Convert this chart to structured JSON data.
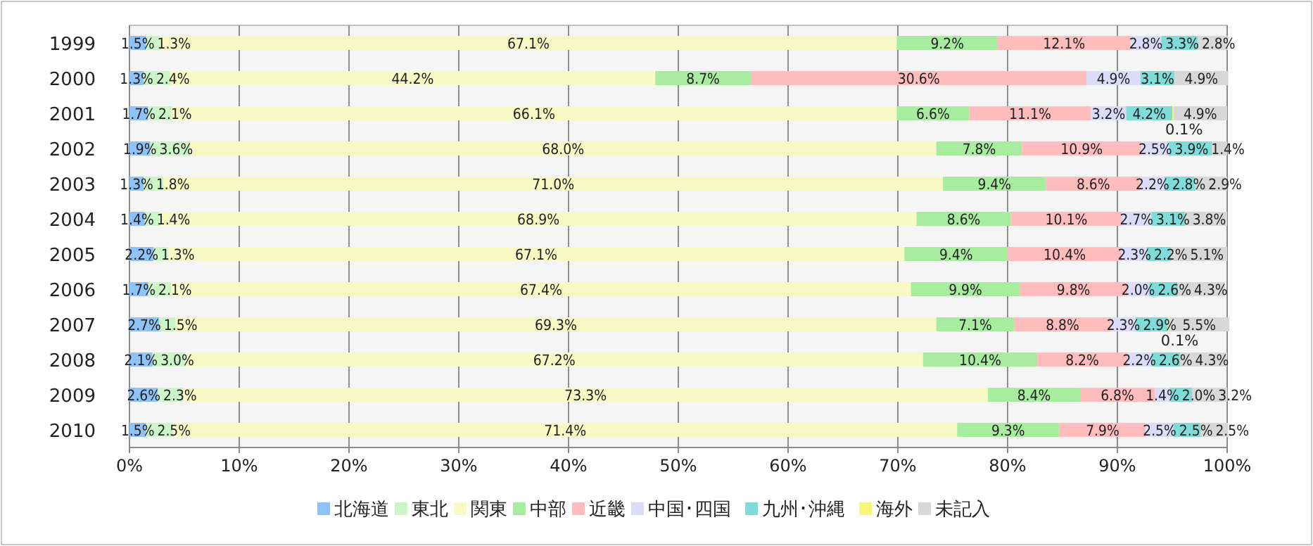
{
  "chart_data": {
    "type": "bar",
    "orientation": "horizontal",
    "stacked": true,
    "categories": [
      "1999",
      "2000",
      "2001",
      "2002",
      "2003",
      "2004",
      "2005",
      "2006",
      "2007",
      "2008",
      "2009",
      "2010"
    ],
    "xlim": [
      0,
      100
    ],
    "xticks": [
      {
        "value": 0,
        "label": "0%"
      },
      {
        "value": 10,
        "label": "10%"
      },
      {
        "value": 20,
        "label": "20%"
      },
      {
        "value": 30,
        "label": "30%"
      },
      {
        "value": 40,
        "label": "40%"
      },
      {
        "value": 50,
        "label": "50%"
      },
      {
        "value": 60,
        "label": "60%"
      },
      {
        "value": 70,
        "label": "70%"
      },
      {
        "value": 80,
        "label": "80%"
      },
      {
        "value": 90,
        "label": "90%"
      },
      {
        "value": 100,
        "label": "100%"
      }
    ],
    "grid": "x",
    "legend": "bottom",
    "series": [
      {
        "name": "北海道",
        "color": "#8fc3f7",
        "values": [
          1.5,
          1.3,
          1.7,
          1.9,
          1.3,
          1.4,
          2.2,
          1.7,
          2.7,
          2.1,
          2.6,
          1.5
        ],
        "value_labels": [
          "1.5%",
          "1.3%",
          "1.7%",
          "1.9%",
          "1.3%",
          "1.4%",
          "2.2%",
          "1.7%",
          "2.7%",
          "2.1%",
          "2.6%",
          "1.5%"
        ]
      },
      {
        "name": "東北",
        "color": "#ccf5c8",
        "values": [
          1.3,
          2.4,
          2.1,
          3.6,
          1.8,
          1.4,
          1.3,
          2.1,
          1.5,
          3.0,
          2.3,
          2.5
        ],
        "value_labels": [
          "1.3%",
          "2.4%",
          "2.1%",
          "3.6%",
          "1.8%",
          "1.4%",
          "1.3%",
          "2.1%",
          "1.5%",
          "3.0%",
          "2.3%",
          "2.5%"
        ]
      },
      {
        "name": "関東",
        "color": "#f9f9c6",
        "values": [
          67.1,
          44.2,
          66.1,
          68.0,
          71.0,
          68.9,
          67.1,
          67.4,
          69.3,
          67.2,
          73.3,
          71.4
        ],
        "value_labels": [
          "67.1%",
          "44.2%",
          "66.1%",
          "68.0%",
          "71.0%",
          "68.9%",
          "67.1%",
          "67.4%",
          "69.3%",
          "67.2%",
          "73.3%",
          "71.4%"
        ]
      },
      {
        "name": "中部",
        "color": "#a8eca0",
        "values": [
          9.2,
          8.7,
          6.6,
          7.8,
          9.4,
          8.6,
          9.4,
          9.9,
          7.1,
          10.4,
          8.4,
          9.3
        ],
        "value_labels": [
          "9.2%",
          "8.7%",
          "6.6%",
          "7.8%",
          "9.4%",
          "8.6%",
          "9.4%",
          "9.9%",
          "7.1%",
          "10.4%",
          "8.4%",
          "9.3%"
        ]
      },
      {
        "name": "近畿",
        "color": "#ffbcbc",
        "values": [
          12.1,
          30.6,
          11.1,
          10.9,
          8.6,
          10.1,
          10.4,
          9.8,
          8.8,
          8.2,
          6.8,
          7.9
        ],
        "value_labels": [
          "12.1%",
          "30.6%",
          "11.1%",
          "10.9%",
          "8.6%",
          "10.1%",
          "10.4%",
          "9.8%",
          "8.8%",
          "8.2%",
          "6.8%",
          "7.9%"
        ]
      },
      {
        "name": "中国･四国",
        "color": "#dcdcfa",
        "values": [
          2.8,
          4.9,
          3.2,
          2.5,
          2.2,
          2.7,
          2.3,
          2.0,
          2.3,
          2.2,
          1.4,
          2.5
        ],
        "value_labels": [
          "2.8%",
          "4.9%",
          "3.2%",
          "2.5%",
          "2.2%",
          "2.7%",
          "2.3%",
          "2.0%",
          "2.3%",
          "2.2%",
          "1.4%",
          "2.5%"
        ]
      },
      {
        "name": "九州･沖縄",
        "color": "#7fdcd8",
        "values": [
          3.3,
          3.1,
          4.2,
          3.9,
          2.8,
          3.1,
          2.2,
          2.6,
          2.9,
          2.6,
          2.0,
          2.5
        ],
        "value_labels": [
          "3.3%",
          "3.1%",
          "4.2%",
          "3.9%",
          "2.8%",
          "3.1%",
          "2.2%",
          "2.6%",
          "2.9%",
          "2.6%",
          "2.0%",
          "2.5%"
        ]
      },
      {
        "name": "海外",
        "color": "#f7f77a",
        "values": [
          null,
          null,
          0.1,
          null,
          null,
          null,
          null,
          null,
          0.1,
          null,
          null,
          null
        ],
        "value_labels": [
          null,
          null,
          "0.1%",
          null,
          null,
          null,
          null,
          null,
          "0.1%",
          null,
          null,
          null
        ]
      },
      {
        "name": "未記入",
        "color": "#d8d8d8",
        "values": [
          2.8,
          4.9,
          4.9,
          1.4,
          2.9,
          3.8,
          5.1,
          4.3,
          5.5,
          4.3,
          3.2,
          2.5
        ],
        "value_labels": [
          "2.8%",
          "4.9%",
          "4.9%",
          "1.4%",
          "2.9%",
          "3.8%",
          "5.1%",
          "4.3%",
          "5.5%",
          "4.3%",
          "3.2%",
          "2.5%"
        ]
      }
    ]
  }
}
